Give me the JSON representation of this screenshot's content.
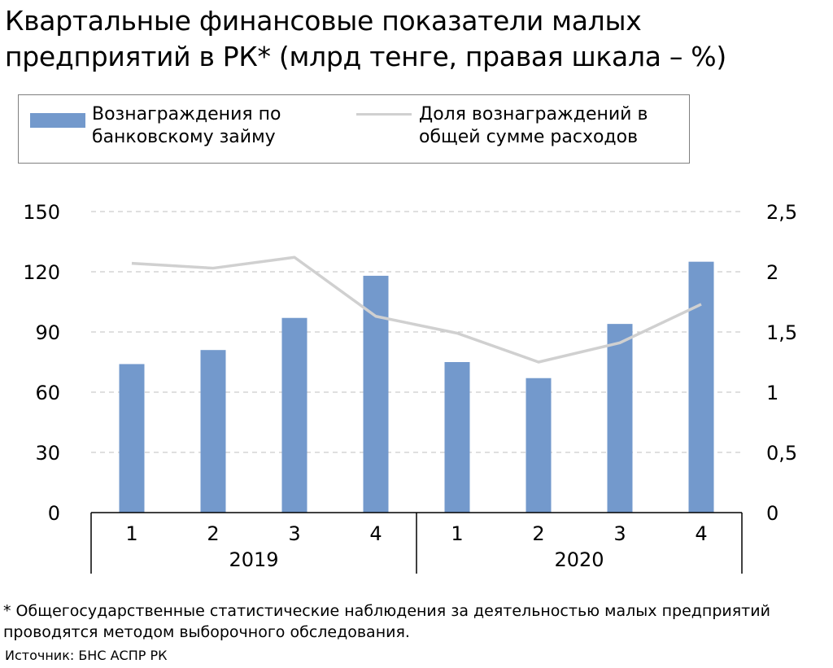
{
  "title": "Квартальные финансовые показатели малых предприятий в РК* (млрд тенге, правая шкала – %)",
  "footnote": "* Общегосударственные статистические наблюдения за деятельностью малых предприятий проводятся методом выборочного обследования.",
  "source": "Источник: БНС АСПР РК",
  "colors": {
    "bars": "#7399cc",
    "line": "#d0d0d0",
    "grid": "#bfbfbf",
    "axis": "#000000"
  },
  "chart_data": {
    "type": "bar",
    "title": "",
    "xlabel": "",
    "ylabel": "",
    "legend_position": "top",
    "grid": true,
    "categories": [
      "1",
      "2",
      "3",
      "4",
      "1",
      "2",
      "3",
      "4"
    ],
    "groups": [
      {
        "label": "2019",
        "from": 0,
        "to": 3
      },
      {
        "label": "2020",
        "from": 4,
        "to": 7
      }
    ],
    "ylim": [
      0,
      150
    ],
    "y_ticks": [
      "0",
      "30",
      "60",
      "90",
      "120",
      "150"
    ],
    "y2lim": [
      0,
      2.5
    ],
    "y2_ticks": [
      "0",
      "0,5",
      "1",
      "1,5",
      "2",
      "2,5"
    ],
    "series": [
      {
        "name": "Вознаграждения по банковскому займу",
        "type": "bar",
        "axis": "left",
        "values": [
          74,
          81,
          97,
          118,
          75,
          67,
          94,
          125
        ]
      },
      {
        "name": "Доля вознаграждений в общей сумме расходов",
        "type": "line",
        "axis": "right",
        "values": [
          2.07,
          2.03,
          2.12,
          1.63,
          1.49,
          1.25,
          1.41,
          1.73
        ]
      }
    ]
  }
}
